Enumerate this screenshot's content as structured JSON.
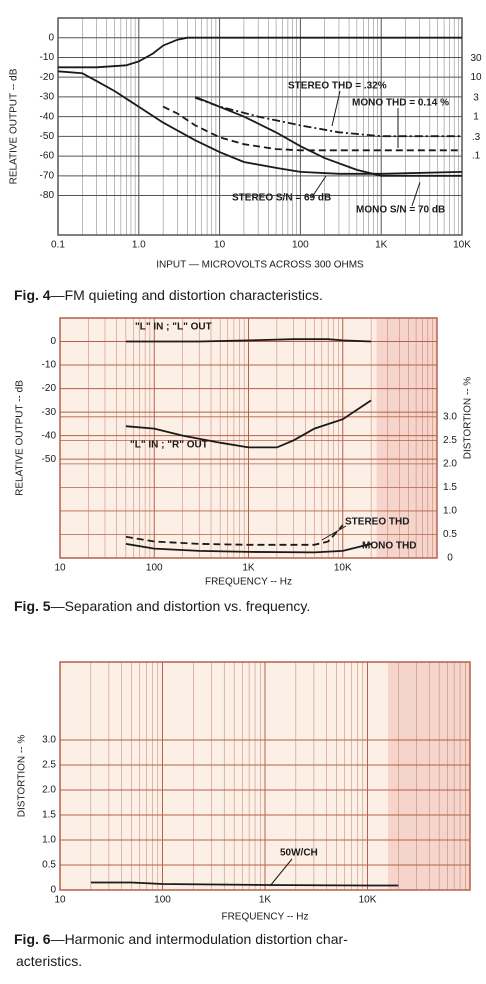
{
  "chart_data": [
    {
      "type": "line",
      "fig_label": "Fig. 4",
      "caption": [
        "—FM quieting and distortion characteristics."
      ],
      "xlabel": "INPUT — MICROVOLTS ACROSS 300 OHMS",
      "ylabel": "RELATIVE OUTPUT -- dB",
      "log_x": true,
      "xlim": [
        0.1,
        10000
      ],
      "xticks": [
        0.1,
        {
          "value": 1,
          "label": "1.0"
        },
        10,
        100,
        {
          "value": 1000,
          "label": "1K"
        },
        {
          "value": 10000,
          "label": "10K"
        }
      ],
      "ylim": [
        -100,
        10
      ],
      "yticks": [
        0,
        -10,
        -20,
        -30,
        -40,
        -50,
        -60,
        -70,
        -80
      ],
      "y2_log": true,
      "y2lim": [
        0.001,
        316
      ],
      "y2ticks": [
        30,
        10,
        3,
        1,
        {
          "value": 0.3,
          "label": ".3"
        },
        {
          "value": 0.1,
          "label": ".1"
        }
      ],
      "grid": true,
      "grid_color": "#555555",
      "background": "#ffffff",
      "series": [
        {
          "dash": "solid",
          "color": "#1a1a1a",
          "x": [
            0.1,
            0.3,
            0.7,
            1,
            1.5,
            2,
            3,
            4,
            10,
            100,
            1000,
            10000
          ],
          "values": [
            -15,
            -15,
            -14,
            -12,
            -8,
            -4,
            -1,
            0,
            0,
            0,
            0,
            0
          ]
        },
        {
          "dash": "solid",
          "color": "#1a1a1a",
          "x": [
            0.1,
            0.2,
            0.3,
            0.5,
            1,
            2,
            5,
            10,
            20,
            50,
            100,
            300,
            1000,
            10000
          ],
          "values": [
            -17,
            -18,
            -22,
            -27,
            -35,
            -43,
            -52,
            -58,
            -63,
            -66,
            -68,
            -69,
            -69,
            -68
          ]
        },
        {
          "dash": "solid",
          "color": "#1a1a1a",
          "x": [
            5,
            10,
            20,
            50,
            100,
            200,
            500,
            1000,
            10000
          ],
          "values": [
            -30,
            -35,
            -40,
            -48,
            -55,
            -61,
            -67,
            -70,
            -70
          ]
        },
        {
          "dash": "dash-dot",
          "color": "#1a1a1a",
          "axis": "y2",
          "x": [
            5,
            10,
            30,
            100,
            300,
            1000,
            10000
          ],
          "values": [
            3,
            1.8,
            1,
            0.6,
            0.4,
            0.32,
            0.32
          ]
        },
        {
          "dash": "dashed",
          "color": "#1a1a1a",
          "axis": "y2",
          "x": [
            2,
            3,
            5,
            10,
            20,
            50,
            100,
            1000,
            10000
          ],
          "values": [
            1.8,
            1.2,
            0.6,
            0.3,
            0.2,
            0.15,
            0.14,
            0.14,
            0.14
          ]
        }
      ],
      "annotations": [
        "STEREO THD = .32%",
        "MONO THD = 0.14 %",
        "STEREO S/N = 69 dB",
        "MONO S/N = 70 dB"
      ]
    },
    {
      "type": "line",
      "fig_label": "Fig. 5",
      "caption": [
        "—Separation and distortion vs. frequency."
      ],
      "xlabel": "FREQUENCY -- Hz",
      "ylabel": "RELATIVE OUTPUT -- dB",
      "y2label": "DISTORTION -- %",
      "log_x": true,
      "xlim": [
        10,
        100000
      ],
      "xticks": [
        10,
        100,
        {
          "value": 1000,
          "label": "1K"
        },
        {
          "value": 10000,
          "label": "10K"
        }
      ],
      "ylim": [
        -92,
        10
      ],
      "yticks": [
        0,
        -10,
        -20,
        -30,
        -40,
        -50
      ],
      "y2lim": [
        0,
        5.1
      ],
      "y2ticks": [
        0,
        0.5,
        {
          "value": 1,
          "label": "1.0"
        },
        1.5,
        {
          "value": 2,
          "label": "2.0"
        },
        2.5,
        {
          "value": 3,
          "label": "3.0"
        }
      ],
      "grid": true,
      "grid_color": "#b5604a",
      "background": "#fcefe6",
      "series": [
        {
          "dash": "solid",
          "color": "#1a1a1a",
          "x": [
            50,
            100,
            300,
            1000,
            3000,
            7000,
            10000,
            20000
          ],
          "values": [
            0,
            0,
            0,
            0.5,
            1,
            1,
            0.5,
            0
          ]
        },
        {
          "dash": "solid",
          "color": "#1a1a1a",
          "x": [
            50,
            100,
            200,
            500,
            1000,
            2000,
            3000,
            5000,
            10000,
            20000
          ],
          "values": [
            -36,
            -37,
            -40,
            -43,
            -45,
            -45,
            -42,
            -37,
            -33,
            -25
          ]
        },
        {
          "dash": "dashed",
          "color": "#1a1a1a",
          "axis": "y2",
          "x": [
            50,
            100,
            300,
            1000,
            5000,
            7000,
            10000
          ],
          "values": [
            0.45,
            0.35,
            0.3,
            0.28,
            0.28,
            0.35,
            0.7
          ]
        },
        {
          "dash": "solid",
          "color": "#1a1a1a",
          "axis": "y2",
          "x": [
            50,
            100,
            300,
            1000,
            5000,
            10000,
            20000
          ],
          "values": [
            0.3,
            0.2,
            0.15,
            0.13,
            0.12,
            0.15,
            0.3
          ]
        }
      ],
      "annotations": [
        "\"L\" IN ; \"L\" OUT",
        "\"L\" IN ; \"R\" OUT",
        "STEREO THD",
        "MONO THD"
      ]
    },
    {
      "type": "line",
      "fig_label": "Fig. 6",
      "caption": [
        "—Harmonic and intermodulation distortion char-",
        "acteristics."
      ],
      "xlabel": "FREQUENCY -- Hz",
      "ylabel": "DISTORTION -- %",
      "log_x": true,
      "xlim": [
        10,
        100000
      ],
      "xticks": [
        10,
        100,
        {
          "value": 1000,
          "label": "1K"
        },
        {
          "value": 10000,
          "label": "10K"
        }
      ],
      "ylim": [
        0,
        4.56
      ],
      "yticks": [
        0,
        0.5,
        {
          "value": 1,
          "label": "1.0"
        },
        1.5,
        {
          "value": 2,
          "label": "2.0"
        },
        2.5,
        {
          "value": 3,
          "label": "3.0"
        }
      ],
      "grid": true,
      "grid_color": "#b5604a",
      "background": "#fcefe6",
      "series": [
        {
          "dash": "solid",
          "color": "#1a1a1a",
          "x": [
            20,
            50,
            100,
            1000,
            10000,
            20000
          ],
          "values": [
            0.15,
            0.15,
            0.12,
            0.1,
            0.09,
            0.09
          ]
        }
      ],
      "annotations": [
        "50W/CH"
      ]
    }
  ]
}
